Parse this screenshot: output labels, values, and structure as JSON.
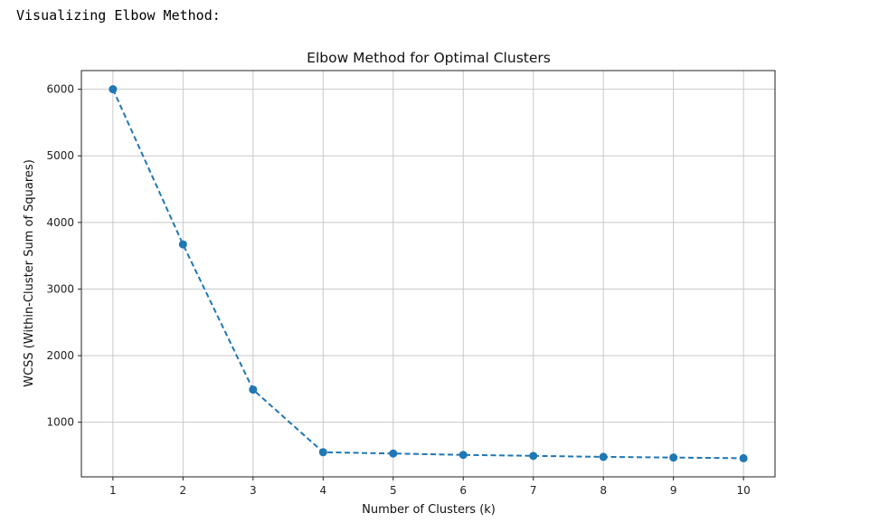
{
  "output_text": "Visualizing Elbow Method:",
  "colors": {
    "series": "#1f77b4",
    "grid": "#c8c8c8",
    "axes": "#222222"
  },
  "chart_data": {
    "type": "line",
    "title": "Elbow Method for Optimal Clusters",
    "xlabel": "Number of Clusters (k)",
    "ylabel": "WCSS (Within-Cluster Sum of Squares)",
    "x": [
      1,
      2,
      3,
      4,
      5,
      6,
      7,
      8,
      9,
      10
    ],
    "series": [
      {
        "values": [
          6000,
          3670,
          1490,
          550,
          530,
          510,
          495,
          480,
          470,
          460
        ],
        "line_style": "dashed",
        "marker": "circle"
      }
    ],
    "x_ticks": [
      "1",
      "2",
      "3",
      "4",
      "5",
      "6",
      "7",
      "8",
      "9",
      "10"
    ],
    "y_ticks": [
      "1000",
      "2000",
      "3000",
      "4000",
      "5000",
      "6000"
    ],
    "xlim": [
      0.55,
      10.45
    ],
    "ylim": [
      180,
      6280
    ],
    "grid": true
  }
}
